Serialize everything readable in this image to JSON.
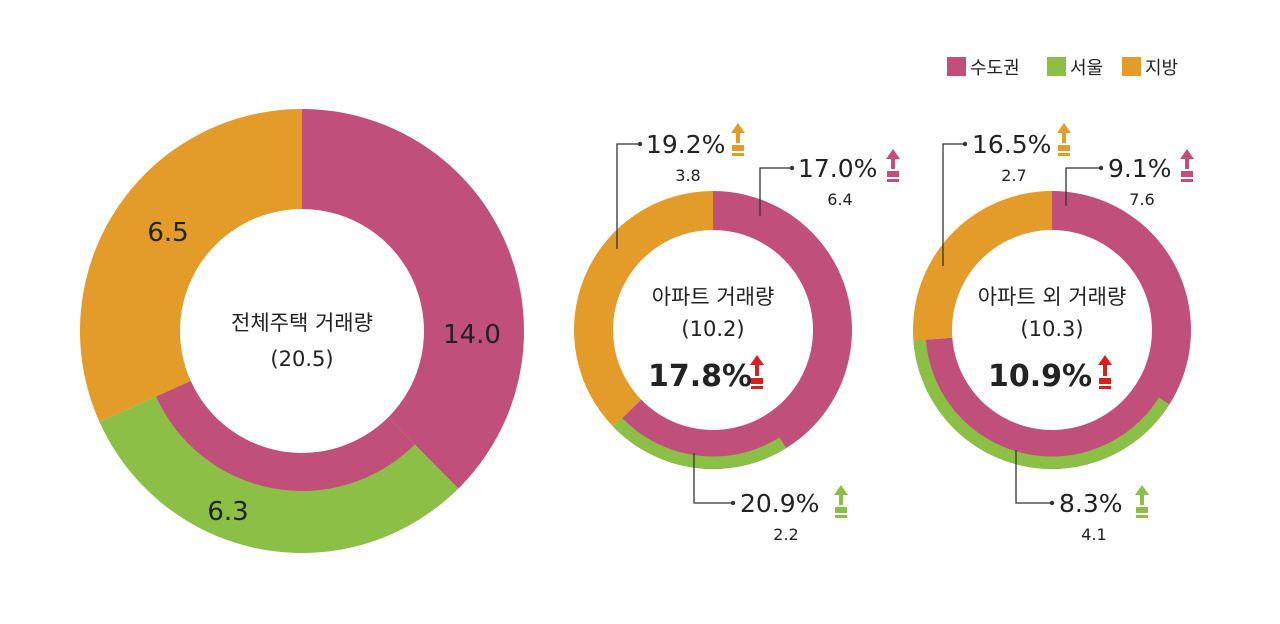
{
  "colors": {
    "metro": "#C0507A",
    "seoul": "#8BBF45",
    "provinces": "#E39B2A",
    "arrow_red": "#D7211E"
  },
  "legend": [
    {
      "label": "수도권",
      "color": "#C0507A"
    },
    {
      "label": "서울",
      "color": "#8BBF45"
    },
    {
      "label": "지방",
      "color": "#E39B2A"
    }
  ],
  "chart_data": [
    {
      "type": "pie",
      "center_title": "전체주택 거래량",
      "center_total": "(20.5)",
      "total": 20.5,
      "slices": [
        {
          "name": "수도권",
          "value": 14.0,
          "label": "14.0",
          "color": "#C0507A"
        },
        {
          "name": "서울",
          "value": 6.3,
          "label": "6.3",
          "color": "#8BBF45"
        },
        {
          "name": "지방",
          "value": 6.5,
          "label": "6.5",
          "color": "#E39B2A"
        }
      ]
    },
    {
      "type": "pie",
      "center_title": "아파트 거래량",
      "center_total": "(10.2)",
      "center_change": "17.8%",
      "total": 10.2,
      "slices": [
        {
          "name": "수도권",
          "value": 6.4,
          "label": "6.4",
          "change": "17.0%",
          "color": "#C0507A"
        },
        {
          "name": "서울",
          "value": 2.2,
          "label": "2.2",
          "change": "20.9%",
          "color": "#8BBF45"
        },
        {
          "name": "지방",
          "value": 3.8,
          "label": "3.8",
          "change": "19.2%",
          "color": "#E39B2A"
        }
      ]
    },
    {
      "type": "pie",
      "center_title": "아파트 외 거래량",
      "center_total": "(10.3)",
      "center_change": "10.9%",
      "total": 10.3,
      "slices": [
        {
          "name": "수도권",
          "value": 7.6,
          "label": "7.6",
          "change": "9.1%",
          "color": "#C0507A"
        },
        {
          "name": "서울",
          "value": 4.1,
          "label": "4.1",
          "change": "8.3%",
          "color": "#8BBF45"
        },
        {
          "name": "지방",
          "value": 2.7,
          "label": "2.7",
          "change": "16.5%",
          "color": "#E39B2A"
        }
      ]
    }
  ]
}
